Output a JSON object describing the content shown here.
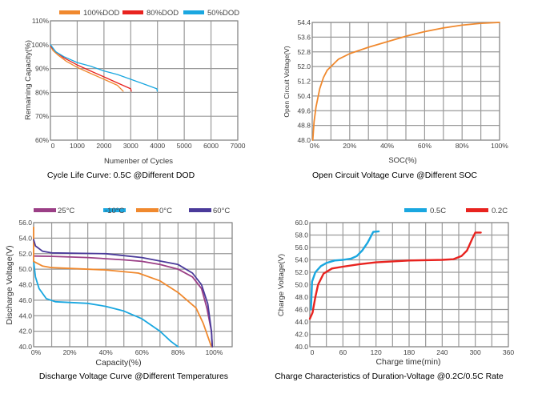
{
  "chart_data": [
    {
      "type": "line",
      "title": "Cycle Life Curve: 0.5C @Different DOD",
      "xlabel": "Numenber of Cycles",
      "ylabel": "Remaining Capacity(%)",
      "xlim": [
        0,
        7000
      ],
      "ylim": [
        60,
        110
      ],
      "grid": true,
      "legend": "top",
      "xticks": [
        0,
        1000,
        2000,
        3000,
        4000,
        5000,
        6000,
        7000
      ],
      "xtick_labels": [
        "0",
        "1000",
        "2000",
        "3000",
        "4000",
        "5000",
        "6000",
        "7000"
      ],
      "yticks": [
        60,
        70,
        80,
        90,
        100,
        110
      ],
      "ytick_labels": [
        "60%",
        "70%",
        "80%",
        "90%",
        "100%",
        "110%"
      ],
      "series": [
        {
          "name": "100%DOD",
          "color": "#f0892e",
          "points": [
            [
              0,
              99.5
            ],
            [
              100,
              97.5
            ],
            [
              300,
              95.5
            ],
            [
              600,
              93
            ],
            [
              1000,
              90.5
            ],
            [
              1500,
              88
            ],
            [
              2000,
              85.5
            ],
            [
              2500,
              83
            ],
            [
              2720,
              80.5
            ]
          ]
        },
        {
          "name": "80%DOD",
          "color": "#e8231f",
          "points": [
            [
              0,
              99.5
            ],
            [
              200,
              97
            ],
            [
              500,
              94.5
            ],
            [
              1000,
              91.5
            ],
            [
              1500,
              89
            ],
            [
              2000,
              86.5
            ],
            [
              2500,
              84
            ],
            [
              3000,
              81.5
            ],
            [
              3020,
              80.5
            ]
          ]
        },
        {
          "name": "50%DOD",
          "color": "#1aa7e0",
          "points": [
            [
              0,
              100
            ],
            [
              200,
              97
            ],
            [
              500,
              95
            ],
            [
              1000,
              92.5
            ],
            [
              1500,
              91
            ],
            [
              2000,
              89
            ],
            [
              2500,
              87.5
            ],
            [
              3000,
              85.5
            ],
            [
              3500,
              83.5
            ],
            [
              3980,
              81.5
            ],
            [
              3990,
              80.5
            ]
          ]
        }
      ]
    },
    {
      "type": "line",
      "title": "Open Circuit Voltage Curve @Different SOC",
      "xlabel": "SOC(%)",
      "ylabel": "Open Circuit Voltage(V)",
      "xlim": [
        0,
        100
      ],
      "ylim": [
        48.0,
        54.4
      ],
      "grid": true,
      "xticks": [
        0,
        20,
        40,
        60,
        80,
        100
      ],
      "xtick_labels": [
        "0%",
        "20%",
        "40%",
        "60%",
        "80%",
        "100%"
      ],
      "yticks": [
        48.0,
        48.8,
        49.6,
        50.4,
        51.2,
        52.0,
        52.8,
        53.6,
        54.4
      ],
      "ytick_labels": [
        "48.0",
        "48.8",
        "49.6",
        "50.4",
        "51.2",
        "52.0",
        "52.8",
        "53.6",
        "54.4"
      ],
      "series": [
        {
          "color": "#f0892e",
          "points": [
            [
              0.3,
              48
            ],
            [
              1,
              49
            ],
            [
              2,
              49.8
            ],
            [
              4,
              50.8
            ],
            [
              6,
              51.4
            ],
            [
              8,
              51.8
            ],
            [
              10,
              52.0
            ],
            [
              14,
              52.4
            ],
            [
              20,
              52.7
            ],
            [
              30,
              53.05
            ],
            [
              40,
              53.35
            ],
            [
              50,
              53.65
            ],
            [
              60,
              53.9
            ],
            [
              70,
              54.1
            ],
            [
              80,
              54.25
            ],
            [
              90,
              54.35
            ],
            [
              100,
              54.4
            ]
          ]
        }
      ]
    },
    {
      "type": "line",
      "title": "Discharge Voltage Curve @Different Temperatures",
      "xlabel": "Capacity(%)",
      "ylabel": "Discharge Voltage(V)",
      "xlim": [
        0,
        110
      ],
      "ylim": [
        40.0,
        56.0
      ],
      "grid": true,
      "legend": "top",
      "xticks": [
        0,
        20,
        40,
        60,
        80,
        100
      ],
      "xtick_labels": [
        "0%",
        "20%",
        "40%",
        "60%",
        "80%",
        "100%"
      ],
      "yticks": [
        40,
        42,
        44,
        46,
        48,
        50,
        52,
        54,
        56
      ],
      "ytick_labels": [
        "40.0",
        "42.0",
        "44.0",
        "46.0",
        "48.0",
        "50.0",
        "52.0",
        "54.0",
        "56.0"
      ],
      "series": [
        {
          "name": "25°C",
          "color": "#9b3f86",
          "points": [
            [
              0,
              51.7
            ],
            [
              10,
              51.65
            ],
            [
              30,
              51.5
            ],
            [
              50,
              51.2
            ],
            [
              60,
              51.0
            ],
            [
              70,
              50.6
            ],
            [
              80,
              50.0
            ],
            [
              88,
              49
            ],
            [
              93,
              47.5
            ],
            [
              96,
              45
            ],
            [
              98.5,
              42
            ],
            [
              99,
              40
            ]
          ]
        },
        {
          "name": "-10°C",
          "color": "#1aa7e0",
          "points": [
            [
              0,
              51
            ],
            [
              1,
              49
            ],
            [
              3,
              47.5
            ],
            [
              7,
              46.2
            ],
            [
              12,
              45.8
            ],
            [
              30,
              45.6
            ],
            [
              40,
              45.2
            ],
            [
              50,
              44.6
            ],
            [
              60,
              43.6
            ],
            [
              70,
              42
            ],
            [
              76,
              40.7
            ],
            [
              80,
              40
            ]
          ]
        },
        {
          "name": "0°C",
          "color": "#f0892e",
          "points": [
            [
              0,
              55.4
            ],
            [
              0,
              51
            ],
            [
              5,
              50.4
            ],
            [
              10,
              50.2
            ],
            [
              40,
              49.9
            ],
            [
              58,
              49.5
            ],
            [
              70,
              48.5
            ],
            [
              80,
              47
            ],
            [
              90,
              45
            ],
            [
              94,
              43
            ],
            [
              97,
              41
            ],
            [
              98.5,
              40
            ]
          ]
        },
        {
          "name": "60°C",
          "color": "#4a3a9a",
          "points": [
            [
              0,
              53.8
            ],
            [
              1,
              53
            ],
            [
              5,
              52.3
            ],
            [
              10,
              52.1
            ],
            [
              40,
              52.0
            ],
            [
              60,
              51.5
            ],
            [
              80,
              50.6
            ],
            [
              88,
              49.5
            ],
            [
              93,
              48
            ],
            [
              96.5,
              45.5
            ],
            [
              98.5,
              42
            ],
            [
              99,
              40
            ]
          ]
        }
      ]
    },
    {
      "type": "line",
      "title": "Charge Characteristics of Duration-Voltage @0.2C/0.5C Rate",
      "xlabel": "Charge time(min)",
      "ylabel": "Charge Voltage(V)",
      "xlim": [
        0,
        360
      ],
      "ylim": [
        40.0,
        60.0
      ],
      "grid": true,
      "legend": "top-right",
      "xticks": [
        0,
        60,
        120,
        180,
        240,
        300,
        360
      ],
      "xtick_labels": [
        "0",
        "60",
        "120",
        "180",
        "240",
        "300",
        "360"
      ],
      "yticks": [
        40,
        42,
        44,
        46,
        48,
        50,
        52,
        54,
        56,
        58,
        60
      ],
      "ytick_labels": [
        "40.0",
        "42.0",
        "44.0",
        "46.0",
        "48.0",
        "50.0",
        "52.0",
        "54.0",
        "56.0",
        "58.0",
        "60.0"
      ],
      "series": [
        {
          "name": "0.5C",
          "color": "#1aa7e0",
          "points": [
            [
              2,
              46
            ],
            [
              4,
              50.5
            ],
            [
              10,
              52
            ],
            [
              20,
              53
            ],
            [
              30,
              53.5
            ],
            [
              45,
              53.9
            ],
            [
              60,
              54
            ],
            [
              75,
              54.2
            ],
            [
              85,
              54.6
            ],
            [
              95,
              55.5
            ],
            [
              105,
              56.8
            ],
            [
              115,
              58.5
            ],
            [
              125,
              58.6
            ]
          ]
        },
        {
          "name": "0.2C",
          "color": "#e8231f",
          "points": [
            [
              0,
              44.5
            ],
            [
              5,
              45.5
            ],
            [
              10,
              48
            ],
            [
              15,
              50
            ],
            [
              25,
              51.8
            ],
            [
              40,
              52.6
            ],
            [
              60,
              52.9
            ],
            [
              90,
              53.3
            ],
            [
              120,
              53.6
            ],
            [
              180,
              53.9
            ],
            [
              240,
              54.0
            ],
            [
              260,
              54.1
            ],
            [
              275,
              54.6
            ],
            [
              285,
              55.5
            ],
            [
              295,
              57.5
            ],
            [
              300,
              58.4
            ],
            [
              310,
              58.4
            ]
          ]
        }
      ]
    }
  ]
}
